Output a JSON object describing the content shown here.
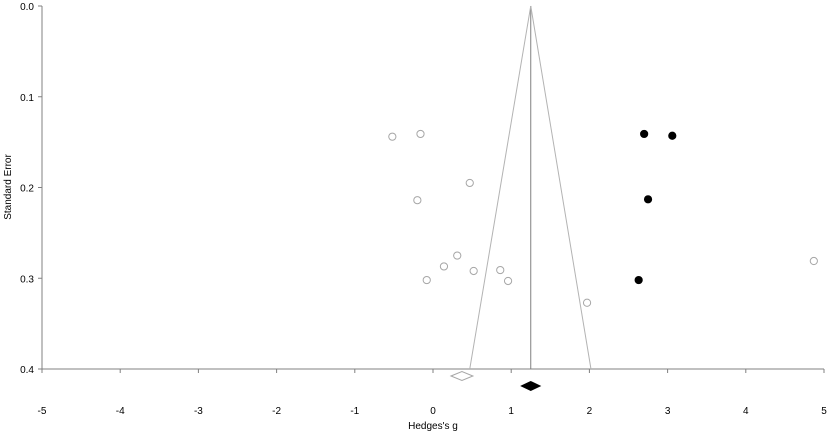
{
  "chart_data": {
    "type": "scatter",
    "title": "",
    "xlabel": "Hedges's g",
    "ylabel": "Standard Error",
    "xlim": [
      -5,
      5
    ],
    "ylim": [
      0,
      0.4
    ],
    "y_reversed": true,
    "x_ticks": [
      "-5",
      "-4",
      "-3",
      "-2",
      "-1",
      "0",
      "1",
      "2",
      "3",
      "4",
      "5"
    ],
    "y_ticks": [
      "0.0",
      "0.1",
      "0.2",
      "0.3",
      "0.4"
    ],
    "grid": false,
    "summary_line_x": 1.25,
    "funnel_apex": [
      1.25,
      0.0
    ],
    "funnel_base": [
      [
        0.47,
        0.4
      ],
      [
        2.02,
        0.4
      ]
    ],
    "series": [
      {
        "marker": "open-circle",
        "color": "#a6a6a6",
        "points": [
          {
            "x": -0.52,
            "y": 0.144
          },
          {
            "x": -0.16,
            "y": 0.141
          },
          {
            "x": 0.47,
            "y": 0.195
          },
          {
            "x": -0.2,
            "y": 0.214
          },
          {
            "x": 0.31,
            "y": 0.275
          },
          {
            "x": 0.14,
            "y": 0.287
          },
          {
            "x": 0.52,
            "y": 0.292
          },
          {
            "x": 0.86,
            "y": 0.291
          },
          {
            "x": -0.08,
            "y": 0.302
          },
          {
            "x": 0.96,
            "y": 0.303
          },
          {
            "x": 1.97,
            "y": 0.327
          },
          {
            "x": 4.87,
            "y": 0.281
          }
        ]
      },
      {
        "marker": "filled-circle",
        "color": "#000000",
        "points": [
          {
            "x": 2.7,
            "y": 0.141
          },
          {
            "x": 3.06,
            "y": 0.143
          },
          {
            "x": 2.75,
            "y": 0.213
          },
          {
            "x": 2.63,
            "y": 0.302
          }
        ]
      }
    ],
    "summary_diamonds": [
      {
        "style": "open",
        "color": "#a6a6a6",
        "x": 0.37,
        "ci": [
          0.23,
          0.51
        ]
      },
      {
        "style": "filled",
        "color": "#000000",
        "x": 1.25,
        "ci": [
          1.13,
          1.37
        ]
      }
    ]
  }
}
